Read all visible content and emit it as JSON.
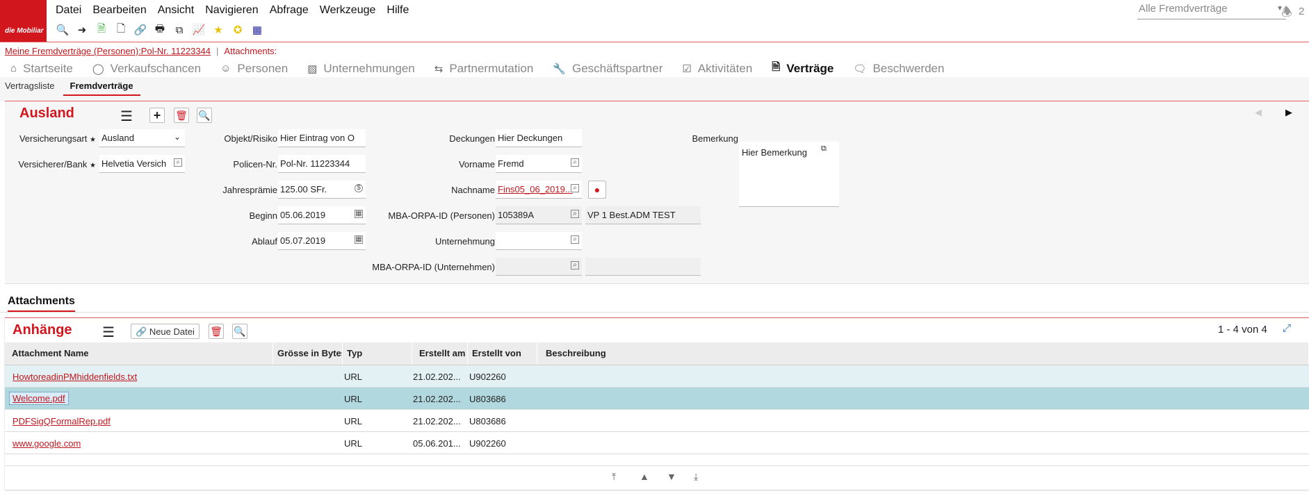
{
  "logo": {
    "text": "die Mobiliar"
  },
  "menu": [
    "Datei",
    "Bearbeiten",
    "Ansicht",
    "Navigieren",
    "Abfrage",
    "Werkzeuge",
    "Hilfe"
  ],
  "toolbar_icons": [
    "search-icon",
    "goto-icon",
    "copy-doc-icon",
    "paste-doc-icon",
    "link-icon",
    "print-icon",
    "merge-icon",
    "chart-icon",
    "favorite-icon",
    "add-favorite-icon",
    "grid-icon"
  ],
  "view_select": {
    "value": "Alle Fremdverträge"
  },
  "notifications": {
    "count": "2"
  },
  "breadcrumb": {
    "link": "Meine Fremdverträge (Personen):Pol-Nr. 11223344",
    "sep": "|",
    "attachments": "Attachments:"
  },
  "nav_tabs": [
    {
      "label": "Startseite",
      "icon": "home-icon"
    },
    {
      "label": "Verkaufschancen",
      "icon": "chance-icon"
    },
    {
      "label": "Personen",
      "icon": "person-icon"
    },
    {
      "label": "Unternehmungen",
      "icon": "building-icon"
    },
    {
      "label": "Partnermutation",
      "icon": "mutation-icon"
    },
    {
      "label": "Geschäftspartner",
      "icon": "wrench-icon"
    },
    {
      "label": "Aktivitäten",
      "icon": "activity-icon"
    },
    {
      "label": "Verträge",
      "icon": "contract-icon",
      "active": true
    },
    {
      "label": "Beschwerden",
      "icon": "complaint-icon"
    }
  ],
  "sub_tabs": [
    {
      "label": "Vertragsliste"
    },
    {
      "label": "Fremdverträge",
      "active": true
    }
  ],
  "form": {
    "title": "Ausland",
    "versicherungsart": {
      "label": "Versicherungsart",
      "value": "Ausland"
    },
    "versicherer": {
      "label": "Versicherer/Bank",
      "value": "Helvetia Versich"
    },
    "objekt": {
      "label": "Objekt/Risiko",
      "value": "Hier Eintrag von O"
    },
    "policen": {
      "label": "Policen-Nr.",
      "value": "Pol-Nr. 11223344"
    },
    "praemie": {
      "label": "Jahresprämie",
      "value": "125.00 SFr."
    },
    "beginn": {
      "label": "Beginn",
      "value": "05.06.2019"
    },
    "ablauf": {
      "label": "Ablauf",
      "value": "05.07.2019"
    },
    "deckungen": {
      "label": "Deckungen",
      "value": "Hier Deckungen"
    },
    "vorname": {
      "label": "Vorname",
      "value": "Fremd"
    },
    "nachname": {
      "label": "Nachname",
      "value": "Fins05_06_2019..."
    },
    "orpa_personen": {
      "label": "MBA-ORPA-ID (Personen)",
      "value": "105389A",
      "extra": "VP 1 Best.ADM TEST"
    },
    "unternehmung": {
      "label": "Unternehmung",
      "value": ""
    },
    "orpa_unternehmen": {
      "label": "MBA-ORPA-ID (Unternehmen)",
      "value": "",
      "extra": ""
    },
    "bemerkung": {
      "label": "Bemerkung",
      "value": "Hier Bemerkung"
    }
  },
  "attachments_tab": "Attachments",
  "attachments": {
    "title": "Anhänge",
    "new_file_label": "Neue Datei",
    "pager": "1 - 4 von 4",
    "columns": [
      "Attachment Name",
      "Grösse in Bytes",
      "Typ",
      "Erstellt am",
      "Erstellt von",
      "Beschreibung"
    ],
    "rows": [
      {
        "name": "HowtoreadinPMhiddenfields.txt",
        "size": "",
        "type": "URL",
        "created": "21.02.202...",
        "by": "U902260",
        "desc": ""
      },
      {
        "name": "Welcome.pdf",
        "size": "",
        "type": "URL",
        "created": "21.02.202...",
        "by": "U803686",
        "desc": "",
        "selected": true
      },
      {
        "name": "PDFSigQFormalRep.pdf",
        "size": "",
        "type": "URL",
        "created": "21.02.202...",
        "by": "U803686",
        "desc": ""
      },
      {
        "name": "www.google.com",
        "size": "",
        "type": "URL",
        "created": "05.06.201...",
        "by": "U902260",
        "desc": ""
      }
    ]
  },
  "colors": {
    "accent": "#d2161e",
    "row_hover": "#e4f1f4",
    "row_selected": "#b2d8df"
  }
}
